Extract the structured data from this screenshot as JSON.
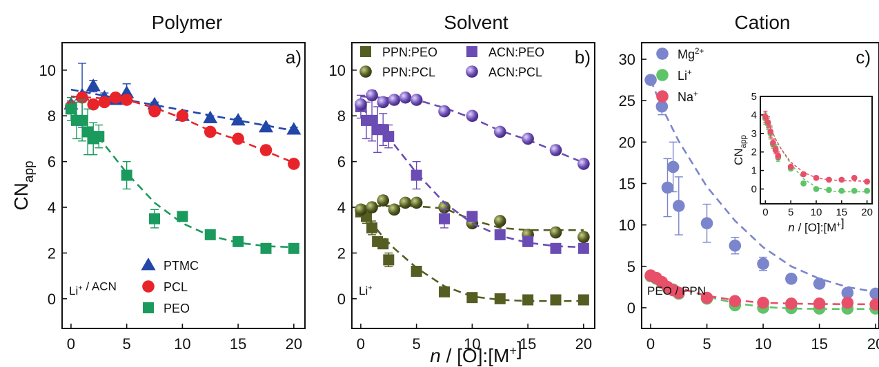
{
  "figure": {
    "xlabel_main": "n / [O]:[M+]"
  },
  "chart_data": [
    {
      "id": "a",
      "type": "scatter",
      "title": "Polymer",
      "panel_label": "a)",
      "note": "Li+ / ACN",
      "xlabel": "",
      "ylabel": "CNapp",
      "xlim": [
        -0.8,
        21
      ],
      "ylim": [
        -1.3,
        11.2
      ],
      "xticks": [
        0,
        5,
        10,
        15,
        20
      ],
      "yticks": [
        0,
        2,
        4,
        6,
        8,
        10
      ],
      "legend_position": "bottom-center",
      "series": [
        {
          "name": "PTMC",
          "marker": "triangle",
          "color": "#2347a8",
          "x": [
            0,
            1,
            2,
            3,
            4,
            5,
            7.5,
            10,
            12.5,
            15,
            17.5,
            20
          ],
          "y": [
            8.5,
            8.9,
            9.3,
            8.8,
            8.7,
            9.0,
            8.5,
            8.0,
            7.9,
            7.8,
            7.5,
            7.4
          ],
          "err": [
            0.15,
            1.4,
            0.25,
            0.2,
            0.15,
            0.4,
            0.1,
            0.1,
            0.1,
            0.1,
            0.1,
            0.1
          ],
          "fit": [
            [
              0,
              9.15
            ],
            [
              20,
              7.35
            ]
          ]
        },
        {
          "name": "PCL",
          "marker": "circle",
          "color": "#e8242a",
          "x": [
            0,
            1,
            2,
            3,
            4,
            5,
            7.5,
            10,
            12.5,
            15,
            17.5,
            20
          ],
          "y": [
            8.4,
            8.8,
            8.5,
            8.6,
            8.8,
            8.7,
            8.2,
            8.0,
            7.3,
            7.0,
            6.5,
            5.9
          ],
          "err": [
            0.1,
            0.2,
            0.15,
            0.15,
            0.1,
            0.1,
            0.1,
            0.1,
            0.15,
            0.15,
            0.2,
            0.1
          ],
          "fit": [
            [
              0,
              8.85
            ],
            [
              5,
              8.7
            ],
            [
              7.5,
              8.35
            ],
            [
              10,
              7.9
            ],
            [
              12.5,
              7.35
            ],
            [
              15,
              6.95
            ],
            [
              17.5,
              6.45
            ],
            [
              20,
              5.95
            ]
          ]
        },
        {
          "name": "PEO",
          "marker": "square",
          "color": "#1a9a5c",
          "x": [
            0,
            0.5,
            1,
            1.5,
            2,
            2.5,
            5,
            7.5,
            10,
            12.5,
            15,
            17.5,
            20
          ],
          "y": [
            8.3,
            7.8,
            7.8,
            7.3,
            7.0,
            7.1,
            5.4,
            3.5,
            3.6,
            2.8,
            2.5,
            2.2,
            2.2
          ],
          "err": [
            0.5,
            0.8,
            0.9,
            1.0,
            0.7,
            0.5,
            0.6,
            0.4,
            0.15,
            0.1,
            0.1,
            0.1,
            0.1
          ],
          "fit": [
            [
              0,
              8.2
            ],
            [
              1,
              7.85
            ],
            [
              2.5,
              7.05
            ],
            [
              5,
              5.5
            ],
            [
              7.5,
              4.2
            ],
            [
              10,
              3.3
            ],
            [
              12.5,
              2.75
            ],
            [
              15,
              2.45
            ],
            [
              17.5,
              2.3
            ],
            [
              20,
              2.25
            ]
          ]
        }
      ]
    },
    {
      "id": "b",
      "type": "scatter",
      "title": "Solvent",
      "panel_label": "b)",
      "note": "Li+",
      "xlabel": "",
      "ylabel": "",
      "xlim": [
        -0.8,
        21
      ],
      "ylim": [
        -1.3,
        11.2
      ],
      "xticks": [
        0,
        5,
        10,
        15,
        20
      ],
      "yticks": [
        0,
        2,
        4,
        6,
        8,
        10
      ],
      "legend_position": "top",
      "series": [
        {
          "name": "PPN:PEO",
          "marker": "square",
          "color": "#555d22",
          "x": [
            0,
            0.5,
            1,
            1.5,
            2,
            2.5,
            5,
            7.5,
            10,
            12.5,
            15,
            17.5,
            20
          ],
          "y": [
            3.8,
            3.6,
            3.1,
            2.5,
            2.4,
            1.7,
            1.2,
            0.3,
            0.05,
            0.0,
            -0.05,
            -0.05,
            -0.05
          ],
          "err": [
            0.2,
            0.3,
            0.3,
            0.2,
            0.2,
            0.3,
            0.15,
            0.1,
            0.05,
            0.05,
            0.05,
            0.05,
            0.05
          ],
          "fit": [
            [
              0,
              3.9
            ],
            [
              1,
              3.3
            ],
            [
              2,
              2.7
            ],
            [
              3,
              2.2
            ],
            [
              5,
              1.35
            ],
            [
              7.5,
              0.55
            ],
            [
              10,
              0.1
            ],
            [
              12.5,
              -0.05
            ],
            [
              15,
              -0.1
            ],
            [
              20,
              -0.1
            ]
          ]
        },
        {
          "name": "PPN:PCL",
          "marker": "sphere",
          "color": "#555d22",
          "x": [
            0,
            1,
            2,
            3,
            4,
            5,
            7.5,
            10,
            12.5,
            15,
            17.5,
            20
          ],
          "y": [
            3.9,
            4.0,
            4.3,
            3.9,
            4.2,
            4.2,
            4.0,
            3.3,
            3.4,
            2.8,
            2.9,
            2.7
          ],
          "err": [
            0.2,
            0.2,
            0.2,
            0.1,
            0.1,
            0.1,
            0.2,
            0.1,
            0.1,
            0.2,
            0.1,
            0.2
          ],
          "fit": [
            [
              0,
              4.05
            ],
            [
              5,
              4.05
            ],
            [
              7.5,
              3.95
            ],
            [
              10,
              3.45
            ],
            [
              12.5,
              3.1
            ],
            [
              15,
              3.0
            ],
            [
              20,
              3.0
            ]
          ]
        },
        {
          "name": "ACN:PEO",
          "marker": "square",
          "color": "#6b4cb4",
          "x": [
            0,
            0.5,
            1,
            1.5,
            2,
            2.5,
            5,
            7.5,
            10,
            12.5,
            15,
            17.5,
            20
          ],
          "y": [
            8.4,
            7.8,
            7.8,
            7.4,
            7.4,
            7.1,
            5.4,
            3.5,
            3.6,
            2.8,
            2.5,
            2.2,
            2.2
          ],
          "err": [
            0.5,
            0.8,
            0.9,
            1.0,
            0.7,
            0.5,
            0.6,
            0.4,
            0.15,
            0.1,
            0.1,
            0.1,
            0.1
          ],
          "fit": [
            [
              0,
              8.35
            ],
            [
              1,
              7.95
            ],
            [
              2.5,
              7.05
            ],
            [
              5,
              5.5
            ],
            [
              7.5,
              4.2
            ],
            [
              10,
              3.3
            ],
            [
              12.5,
              2.75
            ],
            [
              15,
              2.45
            ],
            [
              17.5,
              2.3
            ],
            [
              20,
              2.25
            ]
          ]
        },
        {
          "name": "ACN:PCL",
          "marker": "sphere",
          "color": "#6b4cb4",
          "x": [
            0,
            1,
            2,
            3,
            4,
            5,
            7.5,
            10,
            12.5,
            15,
            17.5,
            20
          ],
          "y": [
            8.5,
            8.9,
            8.6,
            8.7,
            8.8,
            8.7,
            8.2,
            8.0,
            7.3,
            7.0,
            6.5,
            5.9
          ],
          "err": [
            0.1,
            0.2,
            0.15,
            0.15,
            0.1,
            0.1,
            0.1,
            0.1,
            0.15,
            0.15,
            0.2,
            0.1
          ],
          "fit": [
            [
              0,
              8.85
            ],
            [
              5,
              8.7
            ],
            [
              7.5,
              8.35
            ],
            [
              10,
              7.9
            ],
            [
              12.5,
              7.35
            ],
            [
              15,
              6.95
            ],
            [
              17.5,
              6.45
            ],
            [
              20,
              5.95
            ]
          ]
        }
      ]
    },
    {
      "id": "c",
      "type": "scatter",
      "title": "Cation",
      "panel_label": "c)",
      "note": "PEO / PPN",
      "xlabel": "",
      "ylabel": "",
      "xlim": [
        -0.8,
        20.3
      ],
      "ylim": [
        -2.5,
        32
      ],
      "xticks": [
        0,
        5,
        10,
        15,
        20
      ],
      "xticklabels": [
        "0",
        "5",
        "10",
        "15",
        "20"
      ],
      "yticks": [
        0,
        5,
        10,
        15,
        20,
        25,
        30
      ],
      "legend_position": "top-left",
      "series": [
        {
          "name": "Mg2+",
          "marker": "circle",
          "color": "#7b85cc",
          "x": [
            0,
            1,
            1.5,
            2,
            2.5,
            5,
            7.5,
            10,
            12.5,
            15,
            17.5,
            20
          ],
          "y": [
            27.5,
            24.3,
            14.5,
            17.0,
            12.3,
            10.2,
            7.5,
            5.3,
            3.5,
            2.9,
            1.8,
            1.7
          ],
          "err": [
            0.4,
            1.0,
            3.5,
            3.0,
            3.5,
            2.3,
            1.0,
            0.8,
            0.5,
            0.5,
            0.4,
            0.3
          ],
          "fit": [
            [
              0,
              27.5
            ],
            [
              1,
              24.2
            ],
            [
              2.5,
              20.1
            ],
            [
              5,
              14.6
            ],
            [
              7.5,
              10.5
            ],
            [
              10,
              7.3
            ],
            [
              12.5,
              5.0
            ],
            [
              15,
              3.5
            ],
            [
              17.5,
              2.5
            ],
            [
              20,
              1.9
            ]
          ]
        },
        {
          "name": "Li+",
          "marker": "circle",
          "color": "#5fc468",
          "x": [
            0,
            0.5,
            1,
            1.5,
            2,
            2.5,
            5,
            7.5,
            10,
            12.5,
            15,
            17.5,
            20
          ],
          "y": [
            3.8,
            3.5,
            3.0,
            2.4,
            2.2,
            1.7,
            1.1,
            0.3,
            0.0,
            -0.05,
            -0.1,
            -0.1,
            -0.1
          ],
          "err": [
            0.3,
            0.3,
            0.3,
            0.2,
            0.2,
            0.2,
            0.1,
            0.1,
            0.05,
            0.05,
            0.05,
            0.05,
            0.05
          ],
          "fit": [
            [
              0,
              3.9
            ],
            [
              1,
              3.3
            ],
            [
              2,
              2.7
            ],
            [
              3,
              2.2
            ],
            [
              5,
              1.35
            ],
            [
              7.5,
              0.55
            ],
            [
              10,
              0.1
            ],
            [
              12.5,
              -0.1
            ],
            [
              15,
              -0.15
            ],
            [
              20,
              -0.15
            ]
          ]
        },
        {
          "name": "Na+",
          "marker": "circle",
          "color": "#e8506a",
          "x": [
            0,
            0.5,
            1,
            1.5,
            2,
            2.5,
            5,
            7.5,
            10,
            12.5,
            15,
            17.5,
            20
          ],
          "y": [
            3.9,
            3.6,
            3.1,
            2.5,
            2.1,
            1.8,
            1.2,
            0.8,
            0.6,
            0.5,
            0.5,
            0.6,
            0.4
          ],
          "err": [
            0.3,
            0.3,
            0.3,
            0.2,
            0.2,
            0.2,
            0.1,
            0.1,
            0.05,
            0.05,
            0.05,
            0.05,
            0.05
          ],
          "fit": [
            [
              0,
              3.95
            ],
            [
              1,
              3.3
            ],
            [
              2,
              2.7
            ],
            [
              3,
              2.2
            ],
            [
              5,
              1.45
            ],
            [
              7.5,
              0.9
            ],
            [
              10,
              0.6
            ],
            [
              12.5,
              0.5
            ],
            [
              15,
              0.45
            ],
            [
              20,
              0.42
            ]
          ]
        }
      ]
    },
    {
      "id": "c_inset",
      "type": "scatter",
      "title": "",
      "xlabel": "n / [O]:[M+]",
      "ylabel": "CNapp",
      "xlim": [
        -1,
        21
      ],
      "ylim": [
        -0.8,
        5
      ],
      "xticks": [
        0,
        5,
        10,
        15,
        20
      ],
      "yticks": [
        0,
        1,
        2,
        3,
        4,
        5
      ],
      "series": [
        {
          "name": "Li+",
          "marker": "circle",
          "color": "#5fc468",
          "x": [
            0,
            0.5,
            1,
            1.5,
            2,
            2.5,
            5,
            7.5,
            10,
            12.5,
            15,
            17.5,
            20
          ],
          "y": [
            3.8,
            3.5,
            3.0,
            2.4,
            2.2,
            1.7,
            1.1,
            0.3,
            0.0,
            -0.05,
            -0.1,
            -0.1,
            -0.1
          ],
          "err": [
            0.3,
            0.3,
            0.3,
            0.2,
            0.2,
            0.2,
            0.1,
            0.1,
            0.05,
            0.05,
            0.05,
            0.05,
            0.05
          ],
          "fit": [
            [
              0,
              3.9
            ],
            [
              1,
              3.3
            ],
            [
              2,
              2.7
            ],
            [
              3,
              2.2
            ],
            [
              5,
              1.35
            ],
            [
              7.5,
              0.55
            ],
            [
              10,
              0.1
            ],
            [
              12.5,
              -0.1
            ],
            [
              15,
              -0.15
            ],
            [
              20,
              -0.15
            ]
          ]
        },
        {
          "name": "Na+",
          "marker": "circle",
          "color": "#e8506a",
          "x": [
            0,
            0.5,
            1,
            1.5,
            2,
            2.5,
            5,
            7.5,
            10,
            12.5,
            15,
            17.5,
            20
          ],
          "y": [
            3.9,
            3.6,
            3.1,
            2.5,
            2.1,
            1.8,
            1.2,
            0.8,
            0.6,
            0.5,
            0.5,
            0.6,
            0.4
          ],
          "err": [
            0.3,
            0.3,
            0.3,
            0.2,
            0.2,
            0.2,
            0.1,
            0.1,
            0.05,
            0.05,
            0.05,
            0.05,
            0.05
          ],
          "fit": [
            [
              0,
              3.95
            ],
            [
              1,
              3.3
            ],
            [
              2,
              2.7
            ],
            [
              3,
              2.2
            ],
            [
              5,
              1.45
            ],
            [
              7.5,
              0.9
            ],
            [
              10,
              0.6
            ],
            [
              12.5,
              0.5
            ],
            [
              15,
              0.45
            ],
            [
              20,
              0.42
            ]
          ]
        }
      ]
    }
  ]
}
